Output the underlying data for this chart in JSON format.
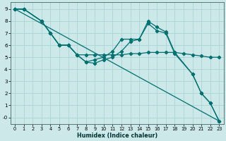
{
  "xlabel": "Humidex (Indice chaleur)",
  "bg_color": "#cce8e8",
  "grid_color": "#aad4d4",
  "line_color": "#007070",
  "xlim": [
    -0.5,
    23.5
  ],
  "ylim": [
    -0.55,
    9.55
  ],
  "xticks": [
    0,
    1,
    2,
    3,
    4,
    5,
    6,
    7,
    8,
    9,
    10,
    11,
    12,
    13,
    14,
    15,
    16,
    17,
    18,
    19,
    20,
    21,
    22,
    23
  ],
  "yticks": [
    0,
    1,
    2,
    3,
    4,
    5,
    6,
    7,
    8,
    9
  ],
  "ytick_labels": [
    "-0",
    "1",
    "2",
    "3",
    "4",
    "5",
    "6",
    "7",
    "8",
    "9"
  ],
  "line_diagonal": {
    "x": [
      0,
      23
    ],
    "y": [
      9.0,
      -0.3
    ]
  },
  "line_flat": {
    "x": [
      0,
      1,
      3,
      4,
      5,
      6,
      7,
      8,
      9,
      10,
      11,
      12,
      13,
      14,
      15,
      16,
      17,
      18,
      19,
      20,
      21,
      22,
      23
    ],
    "y": [
      9,
      9,
      8,
      7,
      6,
      6,
      5.2,
      5.2,
      5.2,
      5.2,
      5.2,
      5.2,
      5.3,
      5.3,
      5.4,
      5.4,
      5.4,
      5.4,
      5.3,
      5.2,
      5.1,
      5.0,
      5.0
    ]
  },
  "line_upper": {
    "x": [
      0,
      1,
      3,
      4,
      5,
      6,
      7,
      8,
      9,
      10,
      11,
      12,
      13,
      14,
      15,
      16,
      17,
      18,
      20,
      21,
      22,
      23
    ],
    "y": [
      9,
      9,
      8,
      7,
      6,
      6,
      5.2,
      4.6,
      4.8,
      5.0,
      5.5,
      6.5,
      6.5,
      6.5,
      8.0,
      7.5,
      7.1,
      5.4,
      3.6,
      2.0,
      1.2,
      -0.3
    ]
  },
  "line_lower": {
    "x": [
      0,
      1,
      3,
      4,
      5,
      6,
      7,
      8,
      9,
      10,
      11,
      12,
      13,
      14,
      15,
      16,
      17,
      18,
      20,
      21,
      22,
      23
    ],
    "y": [
      9,
      9,
      8,
      7,
      6,
      6,
      5.2,
      4.6,
      4.5,
      4.8,
      5.0,
      5.5,
      6.3,
      6.5,
      7.8,
      7.2,
      7.0,
      5.3,
      3.6,
      2.0,
      1.2,
      -0.3
    ]
  }
}
